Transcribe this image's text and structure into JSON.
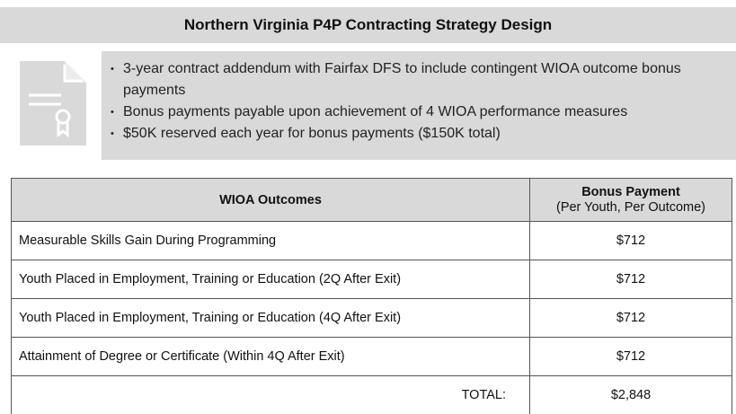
{
  "header": {
    "title": "Northern Virginia P4P Contracting Strategy Design"
  },
  "bullets": [
    "3-year contract addendum with Fairfax DFS to include contingent WIOA outcome bonus payments",
    "Bonus payments payable upon achievement of 4 WIOA performance measures",
    "$50K reserved each year for bonus payments ($150K total)"
  ],
  "table": {
    "header": {
      "outcomes": "WIOA Outcomes",
      "payment": "Bonus Payment",
      "payment_note": "(Per Youth, Per Outcome)"
    },
    "rows": [
      [
        "Measurable Skills Gain During Programming",
        "$712"
      ],
      [
        "Youth Placed in Employment, Training or Education (2Q After Exit)",
        "$712"
      ],
      [
        "Youth Placed in Employment, Training or Education (4Q After Exit)",
        "$712"
      ],
      [
        "Attainment of Degree or Certificate (Within 4Q After Exit)",
        "$712"
      ]
    ],
    "total": {
      "label": "TOTAL:",
      "value": "$2,848"
    }
  }
}
